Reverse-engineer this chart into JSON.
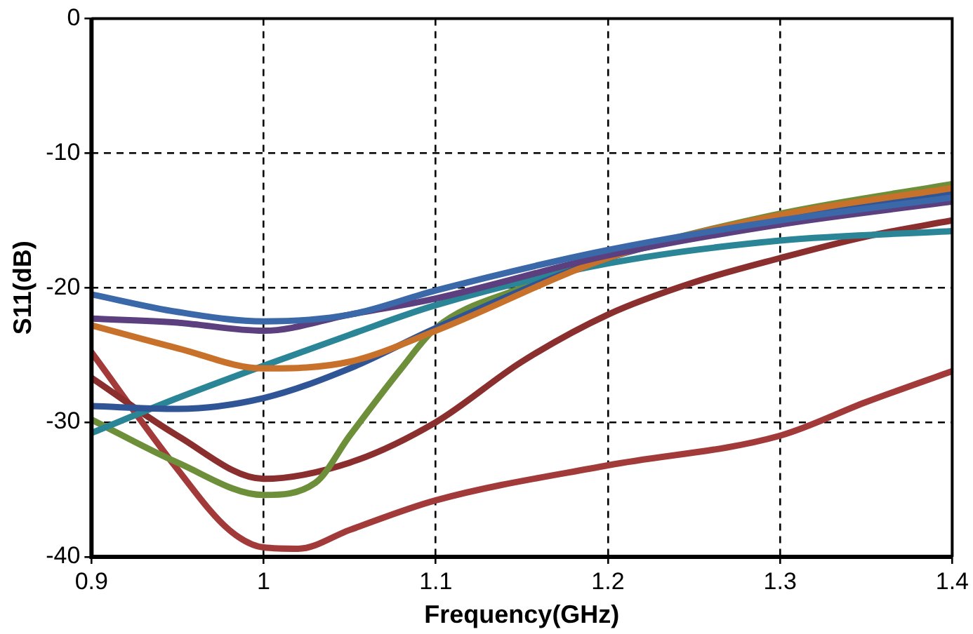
{
  "chart_data": {
    "type": "line",
    "xlabel": "Frequency(GHz)",
    "ylabel": "S11(dB)",
    "xlim": [
      0.9,
      1.4
    ],
    "xticks": [
      0.9,
      1,
      1.1,
      1.2,
      1.3,
      1.4
    ],
    "ylim": [
      -40,
      0
    ],
    "yticks": [
      -40,
      -30,
      -20,
      -10,
      0
    ],
    "grid": true,
    "marker": "none",
    "legend": false,
    "series": [
      {
        "color": "#3a68a8",
        "x": [
          0.9,
          0.95,
          1.0,
          1.05,
          1.1,
          1.2,
          1.3,
          1.4
        ],
        "values": [
          -20.5,
          -21.8,
          -22.5,
          -22,
          -20.2,
          -17.2,
          -15,
          -13.3
        ]
      },
      {
        "color": "#5b3f7e",
        "x": [
          0.9,
          0.95,
          1.0,
          1.05,
          1.1,
          1.2,
          1.3,
          1.4
        ],
        "values": [
          -22.3,
          -22.6,
          -23.2,
          -22,
          -20.8,
          -17.6,
          -15.3,
          -13.6
        ]
      },
      {
        "color": "#c8712a",
        "x": [
          0.9,
          0.95,
          1.0,
          1.05,
          1.1,
          1.2,
          1.3,
          1.4
        ],
        "values": [
          -22.8,
          -24.5,
          -26,
          -25.5,
          -23.2,
          -17.8,
          -14.6,
          -12.6
        ]
      },
      {
        "color": "#2f5597",
        "x": [
          0.9,
          0.95,
          1.0,
          1.05,
          1.1,
          1.2,
          1.3,
          1.4
        ],
        "values": [
          -28.8,
          -29,
          -28.2,
          -26,
          -23,
          -17.8,
          -15,
          -12.9
        ]
      },
      {
        "color": "#2a8596",
        "x": [
          0.9,
          0.95,
          1.0,
          1.05,
          1.1,
          1.2,
          1.3,
          1.4
        ],
        "values": [
          -30.8,
          -28.2,
          -25.8,
          -23.5,
          -21.3,
          -18.2,
          -16.5,
          -15.8
        ]
      },
      {
        "color": "#6e8f3a",
        "x": [
          0.9,
          0.95,
          1.0,
          1.03,
          1.05,
          1.08,
          1.1,
          1.15,
          1.2,
          1.3,
          1.4
        ],
        "values": [
          -29.8,
          -33,
          -35.4,
          -34.5,
          -31,
          -26,
          -23,
          -20,
          -17.7,
          -14.5,
          -12.3
        ]
      },
      {
        "color": "#8b2e2e",
        "x": [
          0.9,
          0.95,
          1.0,
          1.05,
          1.1,
          1.15,
          1.2,
          1.25,
          1.3,
          1.35,
          1.4
        ],
        "values": [
          -26.7,
          -31,
          -34.2,
          -33,
          -30,
          -25.5,
          -22,
          -19.6,
          -17.8,
          -16.2,
          -15
        ]
      },
      {
        "color": "#a33a3a",
        "x": [
          0.9,
          0.95,
          0.98,
          1.0,
          1.02,
          1.05,
          1.1,
          1.2,
          1.3,
          1.35,
          1.4
        ],
        "values": [
          -24.8,
          -33.5,
          -38,
          -39.3,
          -39.4,
          -38,
          -35.8,
          -33.2,
          -31,
          -28.5,
          -26.2
        ]
      }
    ]
  }
}
